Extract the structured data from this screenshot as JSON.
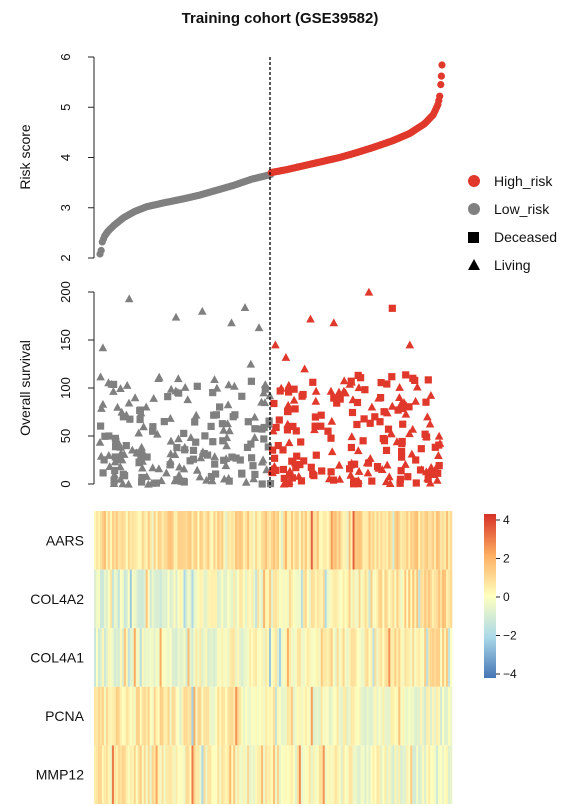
{
  "chart_data": [
    {
      "type": "scatter",
      "panel": "risk-score",
      "title": "Training cohort (GSE39582)",
      "ylabel": "Risk score",
      "ylim": [
        2,
        6
      ],
      "yticks": [
        "2",
        "3",
        "4",
        "5",
        "6"
      ],
      "cutoff_index": 293,
      "n_samples": 585,
      "series": [
        {
          "name": "Low_risk",
          "color": "#808080",
          "points": [
            [
              0,
              2.08
            ],
            [
              2,
              2.15
            ],
            [
              4,
              2.32
            ],
            [
              8,
              2.44
            ],
            [
              15,
              2.55
            ],
            [
              25,
              2.66
            ],
            [
              40,
              2.8
            ],
            [
              60,
              2.93
            ],
            [
              80,
              3.02
            ],
            [
              110,
              3.1
            ],
            [
              140,
              3.17
            ],
            [
              170,
              3.25
            ],
            [
              200,
              3.35
            ],
            [
              230,
              3.45
            ],
            [
              260,
              3.57
            ],
            [
              292,
              3.66
            ]
          ]
        },
        {
          "name": "High_risk",
          "color": "#E0382B",
          "points": [
            [
              293,
              3.7
            ],
            [
              320,
              3.76
            ],
            [
              350,
              3.84
            ],
            [
              380,
              3.92
            ],
            [
              410,
              4.0
            ],
            [
              440,
              4.1
            ],
            [
              470,
              4.21
            ],
            [
              500,
              4.33
            ],
            [
              530,
              4.48
            ],
            [
              555,
              4.67
            ],
            [
              570,
              4.85
            ],
            [
              578,
              5.05
            ],
            [
              581,
              5.22
            ],
            [
              583,
              5.45
            ],
            [
              584,
              5.62
            ],
            [
              585,
              5.84
            ]
          ]
        }
      ]
    },
    {
      "type": "scatter",
      "panel": "overall-survival",
      "ylabel": "Overall survival",
      "ylim": [
        0,
        200
      ],
      "yticks": [
        "0",
        "50",
        "100",
        "150",
        "200"
      ],
      "series": [
        {
          "name": "Low_risk",
          "color": "#808080",
          "points": [
            [
              5,
              142,
              "L"
            ],
            [
              20,
              104,
              "L"
            ],
            [
              50,
              193,
              "L"
            ],
            [
              130,
              174,
              "L"
            ],
            [
              175,
              180,
              "L"
            ],
            [
              225,
              168,
              "L"
            ],
            [
              248,
              184,
              "L"
            ],
            [
              272,
              163,
              "L"
            ],
            [
              30,
              80,
              "L"
            ],
            [
              60,
              90,
              "L"
            ],
            [
              100,
              110,
              "L"
            ],
            [
              150,
              88,
              "L"
            ],
            [
              200,
              100,
              "L"
            ],
            [
              258,
              125,
              "L"
            ],
            [
              280,
              95,
              "L"
            ],
            [
              15,
              50,
              "D"
            ],
            [
              45,
              40,
              "D"
            ],
            [
              70,
              30,
              "D"
            ],
            [
              90,
              55,
              "D"
            ],
            [
              120,
              20,
              "D"
            ],
            [
              160,
              35,
              "D"
            ],
            [
              210,
              45,
              "D"
            ],
            [
              240,
              25,
              "D"
            ],
            [
              265,
              10,
              "D"
            ],
            [
              40,
              70,
              "D"
            ],
            [
              110,
              65,
              "D"
            ],
            [
              190,
              60,
              "D"
            ],
            [
              35,
              5,
              "L"
            ],
            [
              80,
              8,
              "L"
            ],
            [
              140,
              3,
              "L"
            ],
            [
              220,
              6,
              "L"
            ],
            [
              250,
              2,
              "L"
            ],
            [
              285,
              15,
              "L"
            ]
          ]
        },
        {
          "name": "High_risk",
          "color": "#E0382B",
          "points": [
            [
              300,
              145,
              "L"
            ],
            [
              318,
              132,
              "L"
            ],
            [
              360,
              172,
              "L"
            ],
            [
              400,
              168,
              "L"
            ],
            [
              460,
              200,
              "L"
            ],
            [
              500,
              183,
              "D"
            ],
            [
              530,
              145,
              "L"
            ],
            [
              310,
              100,
              "L"
            ],
            [
              350,
              120,
              "L"
            ],
            [
              420,
              95,
              "L"
            ],
            [
              480,
              90,
              "D"
            ],
            [
              520,
              85,
              "L"
            ],
            [
              560,
              70,
              "L"
            ],
            [
              295,
              12,
              "L"
            ],
            [
              305,
              40,
              "D"
            ],
            [
              330,
              60,
              "D"
            ],
            [
              370,
              30,
              "D"
            ],
            [
              390,
              55,
              "D"
            ],
            [
              430,
              20,
              "D"
            ],
            [
              450,
              45,
              "D"
            ],
            [
              490,
              35,
              "D"
            ],
            [
              540,
              25,
              "D"
            ],
            [
              570,
              10,
              "D"
            ],
            [
              580,
              50,
              "L"
            ],
            [
              340,
              8,
              "L"
            ],
            [
              410,
              5,
              "L"
            ],
            [
              470,
              70,
              "D"
            ],
            [
              550,
              15,
              "L"
            ]
          ]
        }
      ]
    },
    {
      "type": "heatmap",
      "panel": "expression-heatmap",
      "rows": [
        "AARS",
        "COL4A2",
        "COL4A1",
        "PCNA",
        "MMP12"
      ],
      "color_scale": {
        "min": -4,
        "max": 4,
        "ticks": [
          "4",
          "2",
          "0",
          "−2",
          "−4"
        ],
        "low": "#4575B4",
        "mid": "#FFFFBF",
        "high": "#D73027"
      },
      "row_trend_start": [
        0.8,
        -0.8,
        -0.6,
        0.6,
        0.6
      ],
      "row_trend_end": [
        0.8,
        0.9,
        0.6,
        -0.4,
        -0.4
      ]
    }
  ],
  "legend": {
    "items": [
      {
        "label": "High_risk",
        "shape": "circle",
        "color": "#E0382B"
      },
      {
        "label": "Low_risk",
        "shape": "circle",
        "color": "#808080"
      },
      {
        "label": "Deceased",
        "shape": "square",
        "color": "#000000"
      },
      {
        "label": "Living",
        "shape": "triangle",
        "color": "#000000"
      }
    ]
  }
}
